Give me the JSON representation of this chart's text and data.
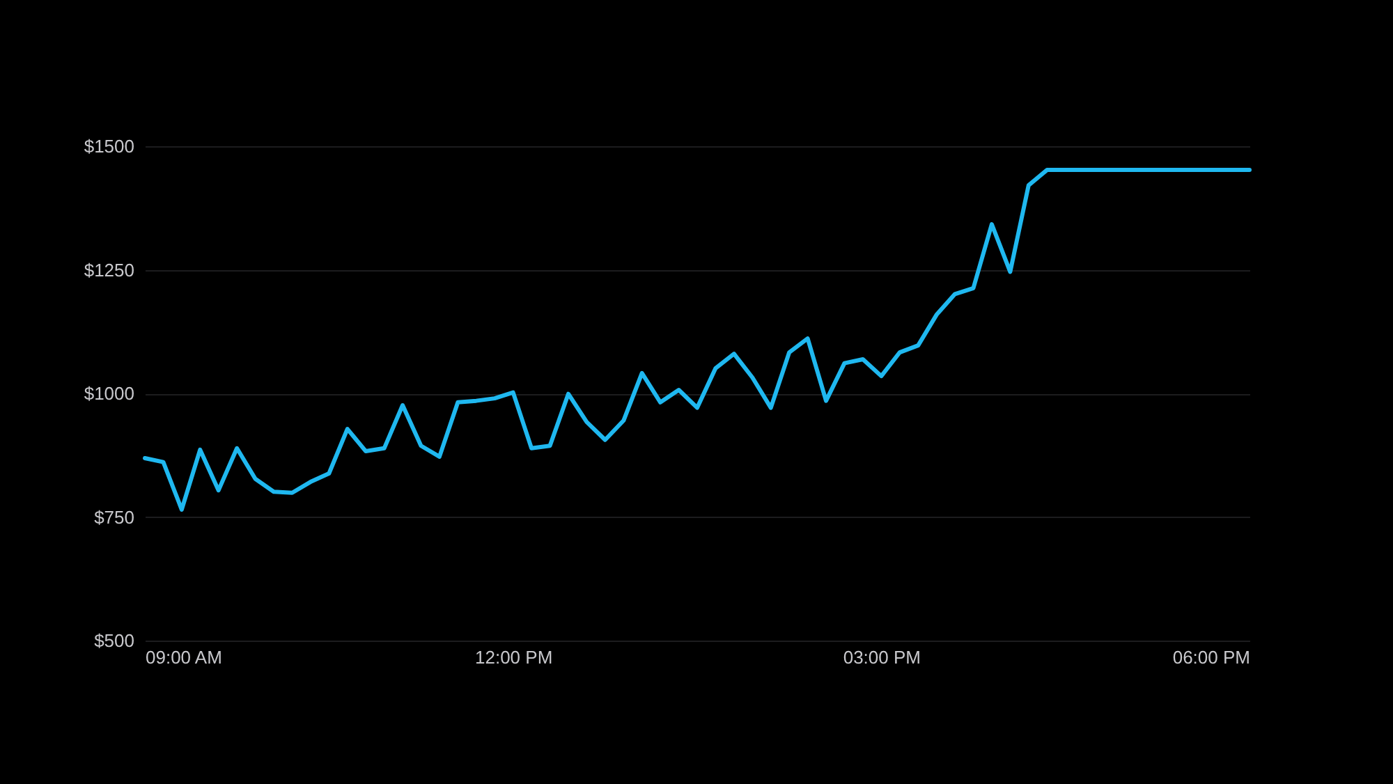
{
  "chart_data": {
    "type": "line",
    "x": [
      9,
      9.15,
      9.3,
      9.45,
      9.6,
      9.75,
      9.9,
      10.05,
      10.2,
      10.35,
      10.5,
      10.65,
      10.8,
      10.95,
      11.1,
      11.25,
      11.4,
      11.55,
      11.7,
      11.85,
      12,
      12.15,
      12.3,
      12.45,
      12.6,
      12.75,
      12.9,
      13.05,
      13.2,
      13.35,
      13.5,
      13.65,
      13.8,
      13.95,
      14.1,
      14.25,
      14.4,
      14.55,
      14.7,
      14.85,
      15,
      15.15,
      15.3,
      15.45,
      15.6,
      15.75,
      15.9,
      16.05,
      16.2,
      16.35,
      16.5,
      16.65,
      16.8,
      16.95,
      17.1,
      17.25,
      17.4,
      17.55,
      17.7,
      17.85,
      18
    ],
    "series": [
      {
        "color": "#1fb8f0",
        "values": [
          869,
          861,
          765,
          886,
          804,
          889,
          827,
          801,
          799,
          821,
          838,
          928,
          883,
          889,
          976,
          894,
          872,
          982,
          985,
          990,
          1002,
          889,
          894,
          999,
          942,
          906,
          945,
          1041,
          982,
          1007,
          971,
          1051,
          1080,
          1032,
          971,
          1083,
          1111,
          985,
          1061,
          1069,
          1035,
          1083,
          1097,
          1159,
          1201,
          1213,
          1342,
          1246,
          1421,
          1452,
          1452,
          1452,
          1452,
          1452,
          1452,
          1452,
          1452,
          1452,
          1452,
          1452,
          1452
        ]
      }
    ],
    "xlim": [
      9,
      18
    ],
    "xticks": [
      {
        "value": 9,
        "label": "09:00 AM"
      },
      {
        "value": 12,
        "label": "12:00 PM"
      },
      {
        "value": 15,
        "label": "03:00 PM"
      },
      {
        "value": 18,
        "label": "06:00 PM"
      }
    ],
    "ylim": [
      500,
      1500
    ],
    "yticks": [
      {
        "value": 500,
        "label": "$500"
      },
      {
        "value": 750,
        "label": "$750"
      },
      {
        "value": 1000,
        "label": "$1000"
      },
      {
        "value": 1250,
        "label": "$1250"
      },
      {
        "value": 1500,
        "label": "$1500"
      }
    ],
    "grid": "y",
    "marker": "none",
    "line_style": "solid",
    "legend": false
  }
}
